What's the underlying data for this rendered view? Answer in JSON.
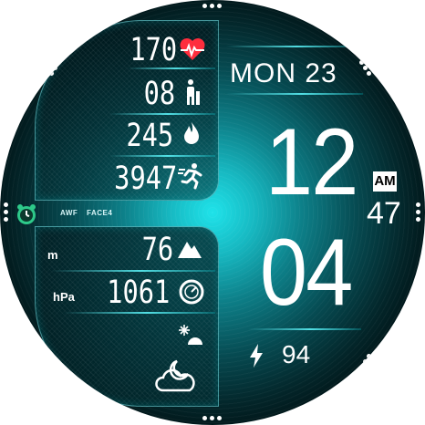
{
  "health": {
    "heart_rate": "170",
    "floors": "08",
    "calories": "245",
    "steps": "3947"
  },
  "weather": {
    "altitude_unit": "m",
    "altitude": "76",
    "pressure_unit": "hPa",
    "pressure": "1061"
  },
  "brand": {
    "name": "AWF",
    "model": "FACE4"
  },
  "time": {
    "date": "MON 23",
    "hour": "12",
    "ampm": "AM",
    "seconds": "47",
    "minute": "04"
  },
  "status": {
    "battery": "94"
  },
  "icons": {
    "heart_rate": "heart-rate-icon",
    "floors": "person-standing-icon",
    "calories": "flame-icon",
    "steps": "running-icon",
    "altitude": "mountain-icon",
    "pressure": "barometer-icon",
    "weather_small": "snow-sun-icon",
    "weather_main": "cloudy-night-icon",
    "alarm": "alarm-clock-icon",
    "battery": "lightning-bolt-icon"
  },
  "colors": {
    "accent": "#1fe3ea",
    "heart": "#ff2d3d",
    "alarm": "#2ec98a",
    "text": "#ffffff"
  }
}
